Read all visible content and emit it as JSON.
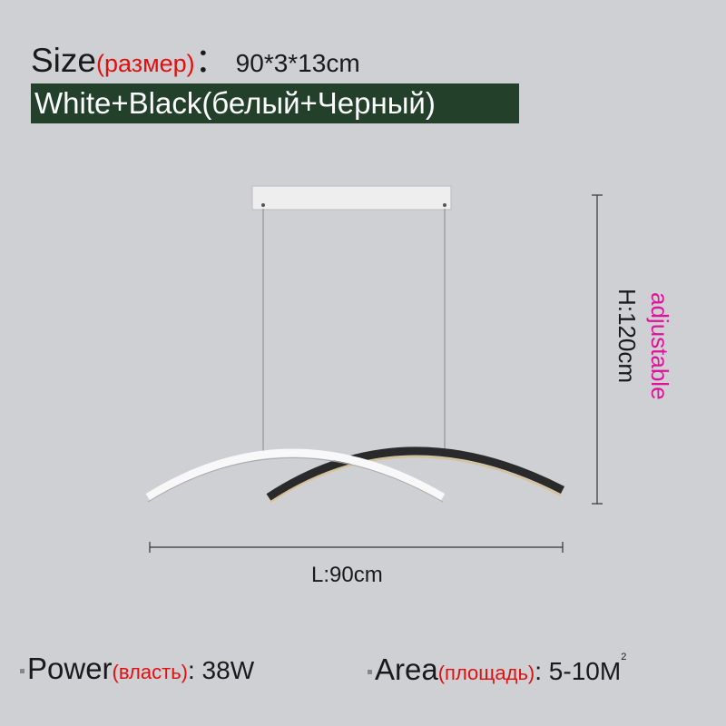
{
  "size": {
    "label": "Size",
    "label_ru": "(размер)",
    "separator": "：",
    "value": "90*3*13cm"
  },
  "color_banner": "White+Black(белый+Черный)",
  "dimensions": {
    "length": "L:90cm",
    "height": "H:120cm",
    "adjustable": "adjustable"
  },
  "power": {
    "label": "Power",
    "label_ru": "(власть)",
    "value": ": 38W"
  },
  "area": {
    "label": "Area",
    "label_ru": "(площадь)",
    "value": ": 5-10M",
    "superscript": "2"
  },
  "colors": {
    "background": "#cfd0d4",
    "banner": "#22402a",
    "accent_red": "#e01010",
    "adjustable_pink": "#e0119a"
  }
}
